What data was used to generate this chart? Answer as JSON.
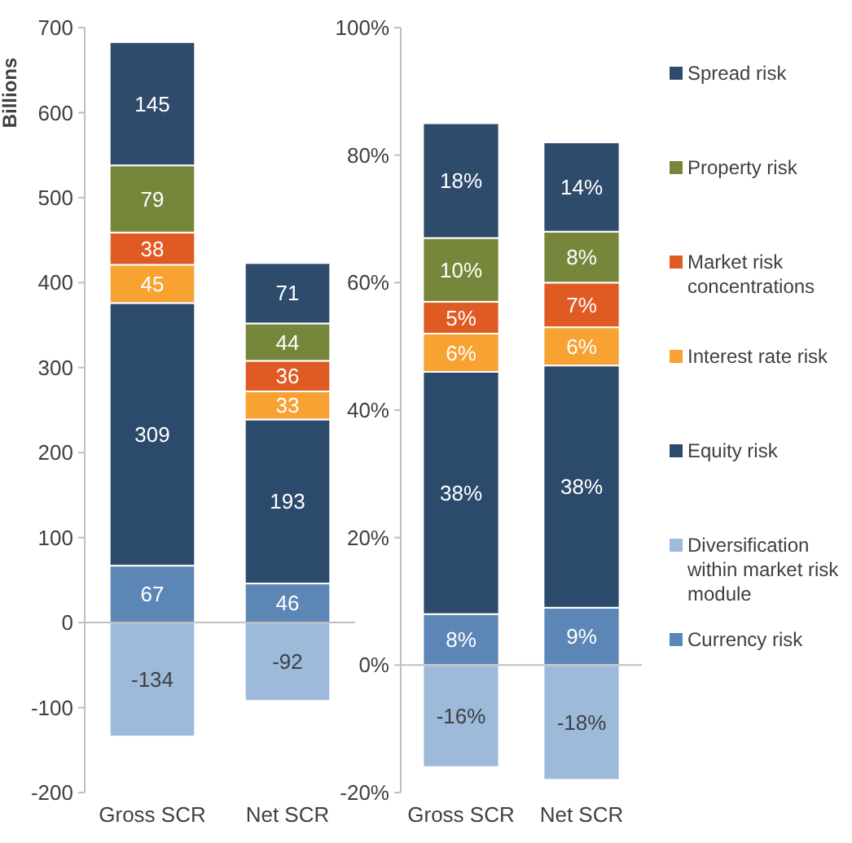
{
  "chart_data": [
    {
      "type": "bar",
      "stacked": true,
      "ylabel": "Billions",
      "categories": [
        "Gross SCR",
        "Net SCR"
      ],
      "ylim": [
        -200,
        700
      ],
      "yticks": [
        -200,
        -100,
        0,
        100,
        200,
        300,
        400,
        500,
        600,
        700
      ],
      "data_labels": true,
      "legend": false,
      "series": [
        {
          "color": "#5b86b6",
          "values": [
            67,
            46
          ]
        },
        {
          "color": "#9dbadb",
          "values": [
            -134,
            -92
          ]
        },
        {
          "color": "#2c4a6b",
          "values": [
            309,
            193
          ]
        },
        {
          "color": "#f7a231",
          "values": [
            45,
            33
          ]
        },
        {
          "color": "#e05a24",
          "values": [
            38,
            36
          ]
        },
        {
          "color": "#76873b",
          "values": [
            79,
            44
          ]
        },
        {
          "color": "#2f4b6c",
          "values": [
            145,
            71
          ]
        }
      ]
    },
    {
      "type": "bar",
      "stacked": true,
      "categories": [
        "Gross SCR",
        "Net SCR"
      ],
      "ylim": [
        -20,
        100
      ],
      "yticks": [
        {
          "value": -20,
          "label": "-20%"
        },
        {
          "value": 0,
          "label": "0%"
        },
        {
          "value": 20,
          "label": "20%"
        },
        {
          "value": 40,
          "label": "40%"
        },
        {
          "value": 60,
          "label": "60%"
        },
        {
          "value": 80,
          "label": "80%"
        },
        {
          "value": 100,
          "label": "100%"
        }
      ],
      "legend": "right",
      "series": [
        {
          "name": "Currency risk",
          "color": "#5b86b6",
          "values": [
            8,
            9
          ],
          "value_labels": [
            "8%",
            "9%"
          ]
        },
        {
          "name": "Diversification within market risk module",
          "color": "#9dbadb",
          "values": [
            -16,
            -18
          ],
          "value_labels": [
            "-16%",
            "-18%"
          ]
        },
        {
          "name": "Equity risk",
          "color": "#2c4a6b",
          "values": [
            38,
            38
          ],
          "value_labels": [
            "38%",
            "38%"
          ]
        },
        {
          "name": "Interest rate risk",
          "color": "#f7a231",
          "values": [
            6,
            6
          ],
          "value_labels": [
            "6%",
            "6%"
          ]
        },
        {
          "name": "Market risk concentrations",
          "color": "#e05a24",
          "values": [
            5,
            7
          ],
          "value_labels": [
            "5%",
            "7%"
          ]
        },
        {
          "name": "Property risk",
          "color": "#76873b",
          "values": [
            10,
            8
          ],
          "value_labels": [
            "10%",
            "8%"
          ]
        },
        {
          "name": "Spread risk",
          "color": "#2f4b6c",
          "values": [
            18,
            14
          ],
          "value_labels": [
            "18%",
            "14%"
          ]
        }
      ]
    }
  ]
}
